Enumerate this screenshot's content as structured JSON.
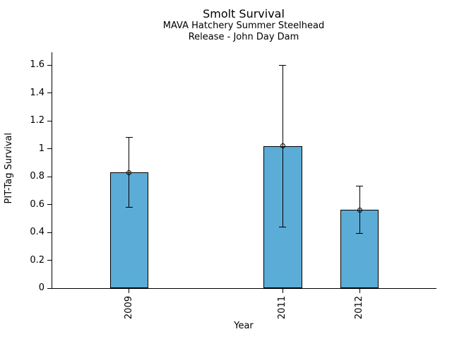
{
  "chart_data": {
    "type": "bar",
    "title": "Smolt Survival",
    "subtitle1": "MAVA Hatchery Summer Steelhead",
    "subtitle2": "Release - John Day Dam",
    "xlabel": "Year",
    "ylabel": "PIT-Tag Survival",
    "categories": [
      "2009",
      "2011",
      "2012"
    ],
    "x": [
      2009,
      2011,
      2012
    ],
    "values": [
      0.83,
      1.02,
      0.56
    ],
    "error_low": [
      0.58,
      0.44,
      0.39
    ],
    "error_high": [
      1.08,
      1.6,
      0.73
    ],
    "xlim": [
      2008,
      2013
    ],
    "ylim": [
      0,
      1.6
    ],
    "ytick_values": [
      0,
      0.2,
      0.4,
      0.6,
      0.8,
      1,
      1.2,
      1.4,
      1.6
    ],
    "ytick_labels": [
      "0",
      "0.2",
      "0.4",
      "0.6",
      "0.8",
      "1",
      "1.2",
      "1.4",
      "1.6"
    ],
    "bar_width_years": 0.5,
    "bar_fill": "#5BACD6",
    "bar_edge": "#000000",
    "marker": "open-circle",
    "grid": false,
    "legend_position": null,
    "background": "#FFFFFF"
  }
}
